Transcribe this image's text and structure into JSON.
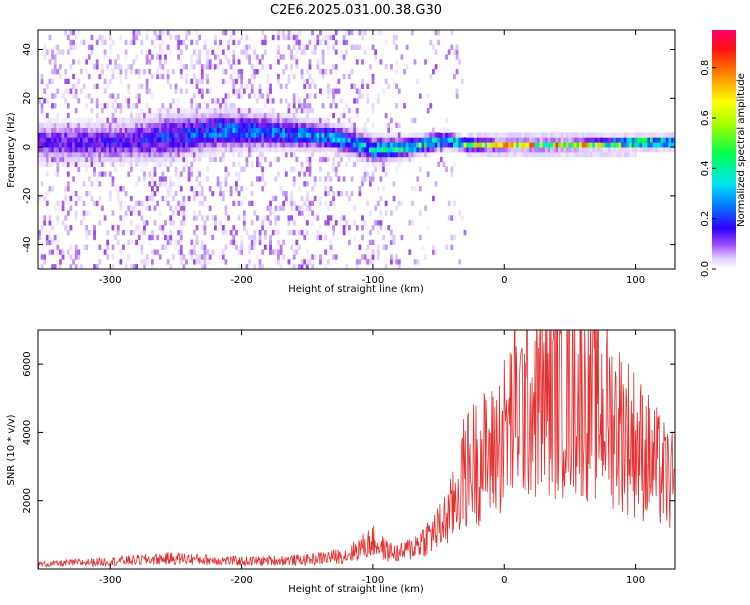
{
  "title": "C2E6.2025.031.00.38.G30",
  "colors": {
    "snr_line": "#e53030",
    "background": "#ffffff",
    "axis": "#000000"
  },
  "chart_data": [
    {
      "type": "heatmap",
      "name": "spectrogram",
      "xlabel": "Height of straight line (km)",
      "ylabel": "Frequency (Hz)",
      "xlim": [
        -355,
        130
      ],
      "ylim": [
        -50,
        48
      ],
      "x_ticks": [
        -300,
        -200,
        -100,
        0,
        100
      ],
      "x_tick_labels": [
        "-300",
        "-200",
        "-100",
        "0",
        "100"
      ],
      "y_ticks": [
        -40,
        -20,
        0,
        20,
        40
      ],
      "y_tick_labels": [
        "-40",
        "-20",
        "0",
        "20",
        "40"
      ],
      "colorbar": {
        "label": "Normalized spectral amplitude",
        "range": [
          0,
          0.95
        ],
        "ticks": [
          0.0,
          0.2,
          0.4,
          0.6,
          0.8
        ],
        "tick_labels": [
          "0.0",
          "0.2",
          "0.4",
          "0.6",
          "0.8"
        ],
        "colormap": [
          "#ffffff",
          "#d9c2ff",
          "#8a2be2",
          "#3300ff",
          "#0080ff",
          "#00e5ff",
          "#00ff40",
          "#c8ff00",
          "#ffff00",
          "#ff8000",
          "#ff0000",
          "#ff0060"
        ]
      },
      "ridge": [
        {
          "x": -300,
          "y": 1,
          "spread": 6,
          "amp": 0.25
        },
        {
          "x": -260,
          "y": 3,
          "spread": 7,
          "amp": 0.3
        },
        {
          "x": -215,
          "y": 6,
          "spread": 6,
          "amp": 0.35
        },
        {
          "x": -170,
          "y": 5,
          "spread": 5,
          "amp": 0.35
        },
        {
          "x": -130,
          "y": 3,
          "spread": 4,
          "amp": 0.4
        },
        {
          "x": -100,
          "y": -2,
          "spread": 4,
          "amp": 0.45
        },
        {
          "x": -75,
          "y": -1,
          "spread": 3,
          "amp": 0.5
        },
        {
          "x": -45,
          "y": 2,
          "spread": 2.5,
          "amp": 0.5
        },
        {
          "x": -30,
          "y": 0,
          "spread": 2,
          "amp": 0.6
        },
        {
          "x": 0,
          "y": 0,
          "spread": 1.5,
          "amp": 0.7
        },
        {
          "x": 50,
          "y": 0,
          "spread": 1.5,
          "amp": 0.7
        },
        {
          "x": 100,
          "y": 1,
          "spread": 1.5,
          "amp": 0.7
        },
        {
          "x": 130,
          "y": 1,
          "spread": 1.5,
          "amp": 0.7
        }
      ]
    },
    {
      "type": "line",
      "name": "snr",
      "xlabel": "Height of straight line (km)",
      "ylabel": "SNR (10 * v/v)",
      "xlim": [
        -355,
        130
      ],
      "ylim": [
        0,
        7000
      ],
      "x_ticks": [
        -300,
        -200,
        -100,
        0,
        100
      ],
      "x_tick_labels": [
        "-300",
        "-200",
        "-100",
        "0",
        "100"
      ],
      "y_ticks": [
        2000,
        4000,
        6000
      ],
      "y_tick_labels": [
        "2000",
        "4000",
        "6000"
      ],
      "envelope": {
        "x": [
          -355,
          -300,
          -250,
          -200,
          -150,
          -120,
          -100,
          -90,
          -80,
          -70,
          -60,
          -50,
          -40,
          -30,
          -20,
          -10,
          0,
          10,
          20,
          30,
          40,
          50,
          60,
          70,
          80,
          90,
          100,
          110,
          120,
          130
        ],
        "y": [
          150,
          250,
          350,
          250,
          300,
          450,
          900,
          600,
          500,
          700,
          1000,
          1300,
          1900,
          3200,
          3600,
          3700,
          4400,
          5200,
          5400,
          5600,
          5700,
          5800,
          5600,
          5300,
          5000,
          4600,
          4100,
          3600,
          3100,
          2700
        ]
      }
    }
  ]
}
